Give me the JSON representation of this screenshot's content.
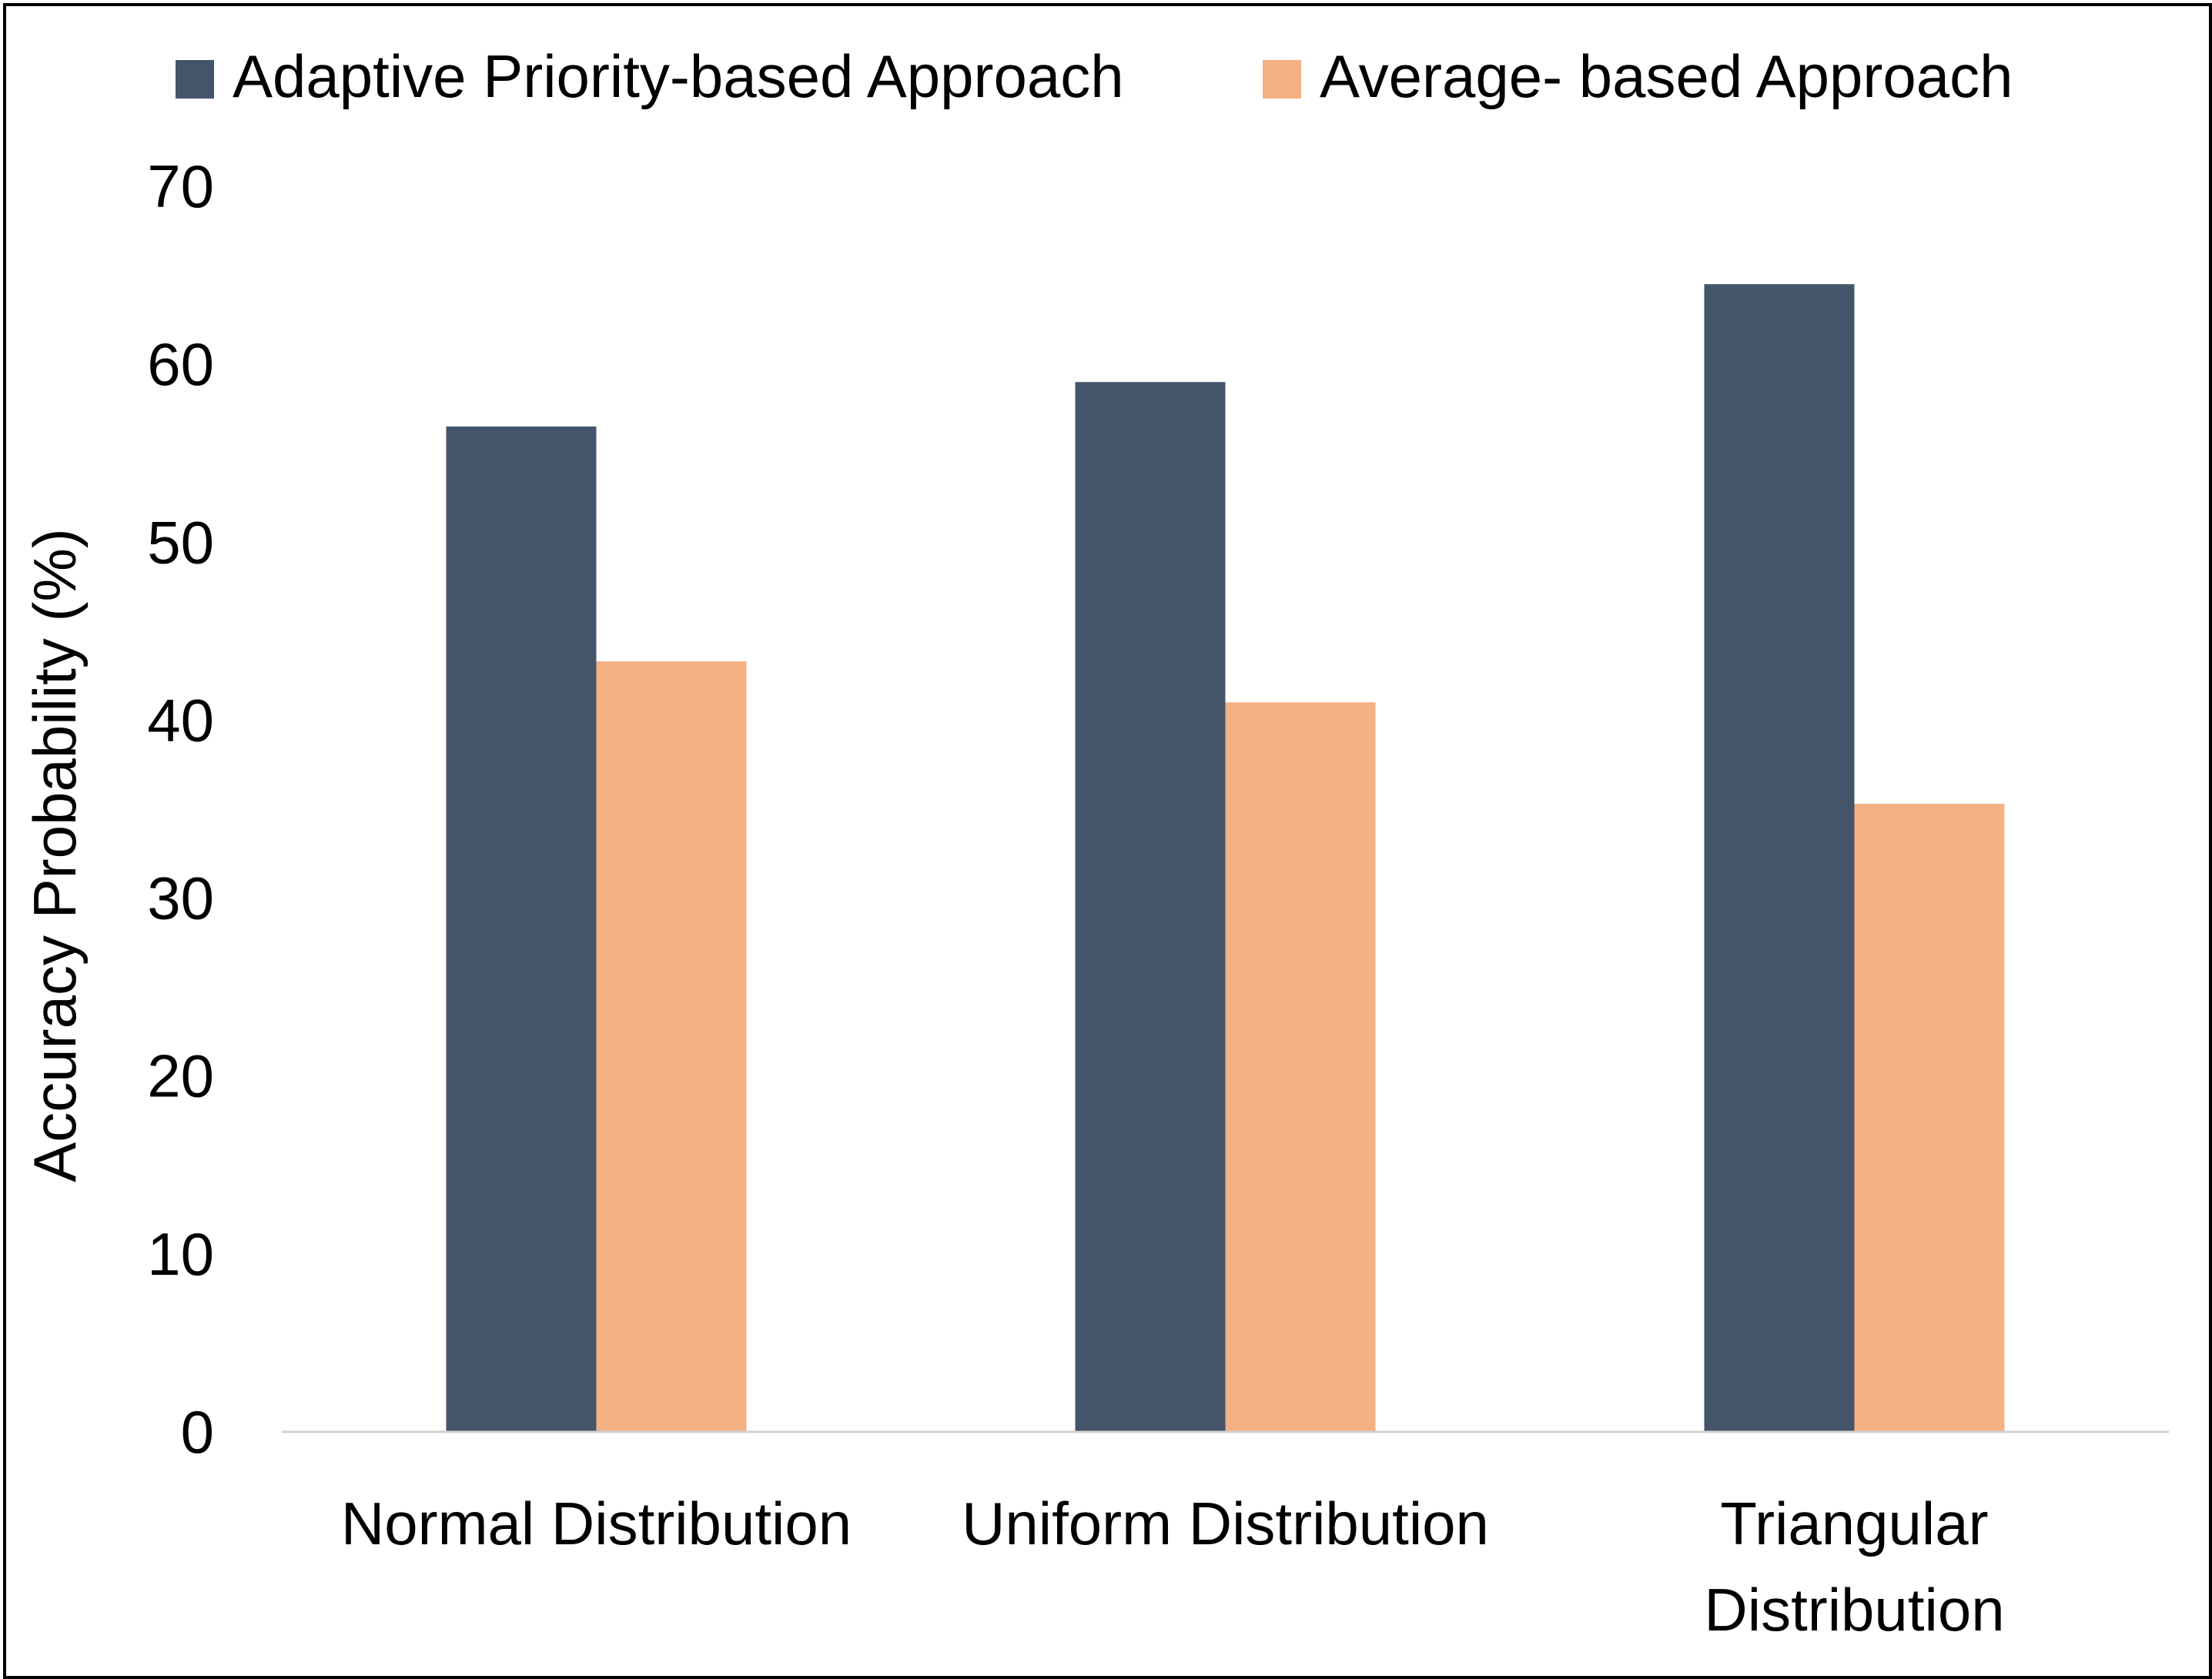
{
  "chart_data": {
    "type": "bar",
    "title": "",
    "xlabel": "",
    "ylabel": "Accuracy Probability (%)",
    "ylim": [
      0,
      70
    ],
    "yticks": [
      0,
      10,
      20,
      30,
      40,
      50,
      60,
      70
    ],
    "ytick_labels": [
      "0",
      "10",
      "20",
      "30",
      "40",
      "50",
      "60",
      "70"
    ],
    "grid": false,
    "legend_position": "top-center",
    "categories": [
      [
        "Normal Distribution"
      ],
      [
        "Uniform Distribution"
      ],
      [
        "Triangular",
        "Distribution"
      ]
    ],
    "series": [
      {
        "name": "Adaptive Priority-based Approach",
        "color": "#44546a",
        "values": [
          56.5,
          59,
          64.5
        ]
      },
      {
        "name": "Average- based Approach",
        "color": "#f4b183",
        "values": [
          43.3,
          41,
          35.3
        ]
      }
    ]
  },
  "colors": {
    "axis_line": "#d0d0d0",
    "frame": "#000000",
    "background": "#ffffff"
  }
}
